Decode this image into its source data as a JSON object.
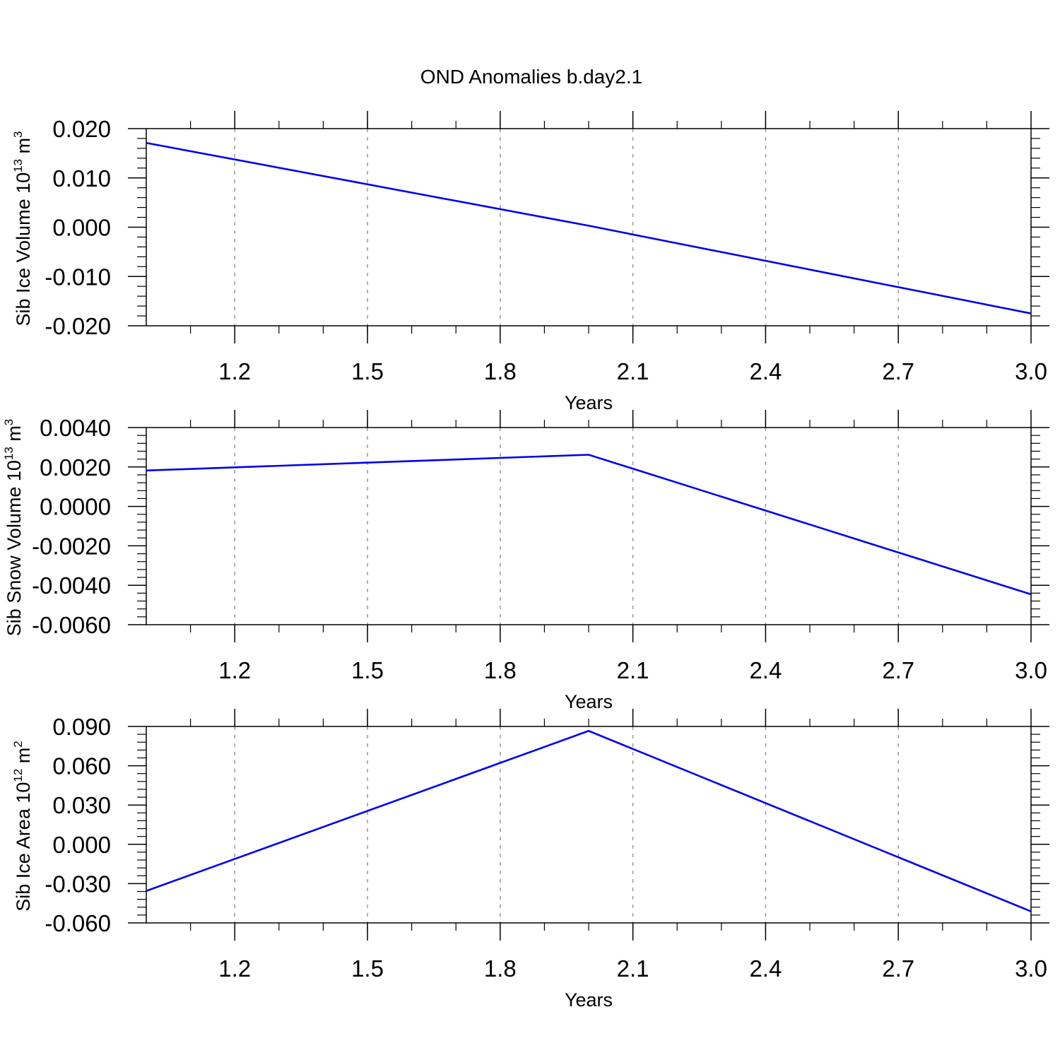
{
  "figure": {
    "title": "OND Anomalies b.day2.1",
    "colors": {
      "line": "#0000ee",
      "frame": "#000000",
      "grid": "#999999"
    }
  },
  "chart_data": [
    {
      "type": "line",
      "title": "OND Anomalies b.day2.1",
      "xlabel": "Years",
      "ylabel": {
        "text": "Sib Ice Volume 10",
        "exp": "13",
        "unit": " m",
        "unit_exp": "3"
      },
      "xlim": [
        1.0,
        3.0
      ],
      "ylim": [
        -0.02,
        0.02
      ],
      "x_ticks": [
        "1.2",
        "1.5",
        "1.8",
        "2.1",
        "2.4",
        "2.7",
        "3.0"
      ],
      "y_ticks": [
        "0.020",
        "0.010",
        "0.000",
        "-0.010",
        "-0.020"
      ],
      "grid": "vertical dashed",
      "series": [
        {
          "name": "Sib Ice Volume",
          "x": [
            1.0,
            2.0,
            3.0
          ],
          "y": [
            0.0171,
            0.0003,
            -0.0175
          ]
        }
      ]
    },
    {
      "type": "line",
      "xlabel": "Years",
      "ylabel": {
        "text": "Sib Snow Volume 10",
        "exp": "13",
        "unit": " m",
        "unit_exp": "3"
      },
      "xlim": [
        1.0,
        3.0
      ],
      "ylim": [
        -0.006,
        0.004
      ],
      "x_ticks": [
        "1.2",
        "1.5",
        "1.8",
        "2.1",
        "2.4",
        "2.7",
        "3.0"
      ],
      "y_ticks": [
        "0.0040",
        "0.0020",
        "0.0000",
        "-0.0020",
        "-0.0040",
        "-0.0060"
      ],
      "grid": "vertical dashed",
      "series": [
        {
          "name": "Sib Snow Volume",
          "x": [
            1.0,
            2.0,
            3.0
          ],
          "y": [
            0.00182,
            0.00262,
            -0.00446
          ]
        }
      ]
    },
    {
      "type": "line",
      "xlabel": "Years",
      "ylabel": {
        "text": "Sib Ice Area 10",
        "exp": "12",
        "unit": " m",
        "unit_exp": "2"
      },
      "xlim": [
        1.0,
        3.0
      ],
      "ylim": [
        -0.06,
        0.09
      ],
      "x_ticks": [
        "1.2",
        "1.5",
        "1.8",
        "2.1",
        "2.4",
        "2.7",
        "3.0"
      ],
      "y_ticks": [
        "0.090",
        "0.060",
        "0.030",
        "0.000",
        "-0.030",
        "-0.060"
      ],
      "grid": "vertical dashed",
      "series": [
        {
          "name": "Sib Ice Area",
          "x": [
            1.0,
            2.0,
            3.0
          ],
          "y": [
            -0.0356,
            0.0866,
            -0.0512
          ]
        }
      ]
    }
  ]
}
